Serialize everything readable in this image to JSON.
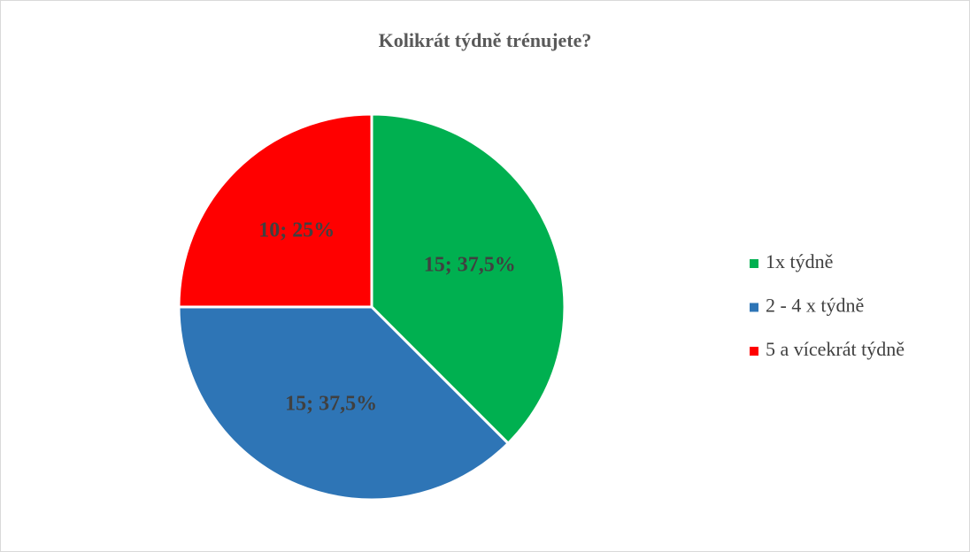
{
  "chart_data": {
    "type": "pie",
    "title": "Kolikrát týdně trénujete?",
    "categories": [
      "1x týdně",
      "2 - 4 x týdně",
      "5 a vícekrát týdně"
    ],
    "values": [
      15,
      15,
      10
    ],
    "value_labels": [
      "15; 37,5%",
      "15; 37,5%",
      "10; 25%"
    ],
    "colors": [
      "#00b050",
      "#2e75b6",
      "#ff0000"
    ],
    "legend": "right"
  }
}
